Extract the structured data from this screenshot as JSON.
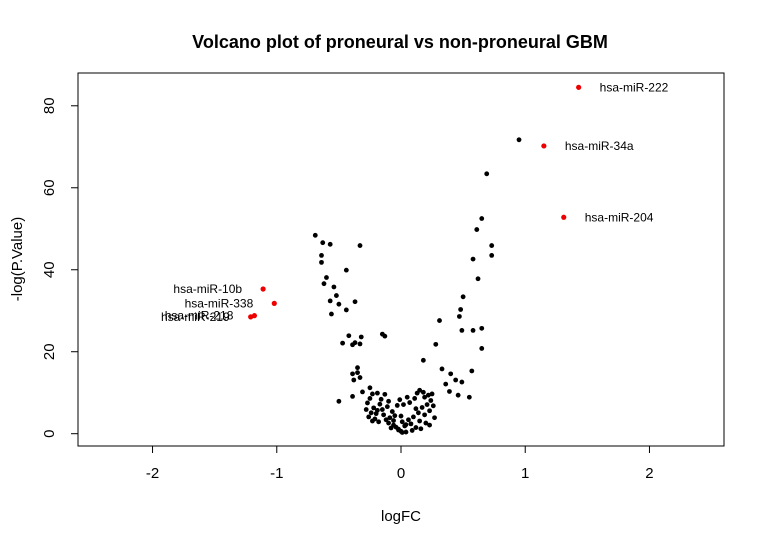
{
  "chart_data": {
    "type": "scatter",
    "title": "Volcano plot of proneural vs non-proneural GBM",
    "xlabel": "logFC",
    "ylabel": "-log(P.Value)",
    "xlim": [
      -2.6,
      2.6
    ],
    "ylim": [
      -3,
      88
    ],
    "xticks": [
      -2,
      -1,
      0,
      1,
      2
    ],
    "yticks": [
      0,
      20,
      40,
      60,
      80
    ],
    "grid": false,
    "colors": {
      "default": "#000000",
      "highlight": "#ee0000"
    },
    "highlighted": [
      {
        "x": 1.43,
        "y": 84.5,
        "label": "hsa-miR-222"
      },
      {
        "x": 1.15,
        "y": 70.2,
        "label": "hsa-miR-34a"
      },
      {
        "x": 1.31,
        "y": 52.8,
        "label": "hsa-miR-204"
      },
      {
        "x": -1.11,
        "y": 35.3,
        "label": "hsa-miR-10b"
      },
      {
        "x": -1.02,
        "y": 31.8,
        "label": "hsa-miR-338"
      },
      {
        "x": -1.21,
        "y": 28.5,
        "label": "hsa-miR-219"
      },
      {
        "x": -1.18,
        "y": 28.8,
        "label": "hsa-miR-218"
      }
    ],
    "points": [
      [
        0.95,
        71.7
      ],
      [
        0.69,
        63.4
      ],
      [
        0.65,
        52.5
      ],
      [
        0.61,
        49.8
      ],
      [
        0.73,
        45.9
      ],
      [
        0.73,
        43.5
      ],
      [
        0.58,
        42.6
      ],
      [
        0.62,
        37.8
      ],
      [
        0.5,
        33.4
      ],
      [
        0.48,
        30.3
      ],
      [
        0.47,
        28.6
      ],
      [
        0.58,
        25.2
      ],
      [
        0.65,
        25.7
      ],
      [
        0.49,
        25.2
      ],
      [
        0.28,
        21.8
      ],
      [
        0.65,
        20.8
      ],
      [
        0.18,
        17.9
      ],
      [
        0.31,
        27.6
      ],
      [
        0.33,
        15.8
      ],
      [
        0.57,
        15.3
      ],
      [
        0.4,
        14.6
      ],
      [
        0.44,
        13.1
      ],
      [
        0.49,
        12.6
      ],
      [
        0.36,
        12.1
      ],
      [
        0.55,
        8.9
      ],
      [
        0.39,
        10.3
      ],
      [
        0.46,
        9.4
      ],
      [
        -0.69,
        48.4
      ],
      [
        -0.63,
        46.6
      ],
      [
        -0.57,
        46.2
      ],
      [
        -0.33,
        45.9
      ],
      [
        -0.64,
        43.5
      ],
      [
        -0.64,
        41.8
      ],
      [
        -0.44,
        39.9
      ],
      [
        -0.6,
        38.1
      ],
      [
        -0.62,
        36.6
      ],
      [
        -0.54,
        35.8
      ],
      [
        -0.52,
        33.7
      ],
      [
        -0.37,
        32.2
      ],
      [
        -0.57,
        32.4
      ],
      [
        -0.5,
        31.6
      ],
      [
        -0.44,
        30.2
      ],
      [
        -0.56,
        29.2
      ],
      [
        -0.42,
        23.9
      ],
      [
        -0.32,
        23.6
      ],
      [
        -0.15,
        24.3
      ],
      [
        -0.13,
        23.8
      ],
      [
        -0.47,
        22.1
      ],
      [
        -0.39,
        21.7
      ],
      [
        -0.37,
        22.2
      ],
      [
        -0.33,
        21.9
      ],
      [
        -0.35,
        16.1
      ],
      [
        -0.39,
        14.6
      ],
      [
        -0.35,
        14.9
      ],
      [
        -0.33,
        13.7
      ],
      [
        -0.38,
        13.1
      ],
      [
        -0.25,
        11.2
      ],
      [
        -0.31,
        10.2
      ],
      [
        -0.23,
        9.7
      ],
      [
        -0.19,
        9.9
      ],
      [
        -0.39,
        9.1
      ],
      [
        -0.25,
        8.6
      ],
      [
        -0.5,
        7.9
      ],
      [
        -0.27,
        7.5
      ],
      [
        -0.22,
        6.3
      ],
      [
        -0.24,
        5.1
      ],
      [
        -0.19,
        5.7
      ],
      [
        -0.15,
        5.9
      ],
      [
        -0.14,
        4.6
      ],
      [
        -0.21,
        3.6
      ],
      [
        -0.12,
        3.4
      ],
      [
        -0.09,
        3.9
      ],
      [
        -0.07,
        5.4
      ],
      [
        -0.06,
        2.1
      ],
      [
        -0.04,
        1.6
      ],
      [
        -0.02,
        1.1
      ],
      [
        0.0,
        0.6
      ],
      [
        0.01,
        2.9
      ],
      [
        0.03,
        1.9
      ],
      [
        0.04,
        0.4
      ],
      [
        0.06,
        3.4
      ],
      [
        0.08,
        2.4
      ],
      [
        0.1,
        4.1
      ],
      [
        0.12,
        1.5
      ],
      [
        0.14,
        5.1
      ],
      [
        0.15,
        3.1
      ],
      [
        0.17,
        6.4
      ],
      [
        0.19,
        4.6
      ],
      [
        0.21,
        7.1
      ],
      [
        0.23,
        5.6
      ],
      [
        0.24,
        8.1
      ],
      [
        0.22,
        9.4
      ],
      [
        0.18,
        10.1
      ],
      [
        0.15,
        10.6
      ],
      [
        0.25,
        9.7
      ],
      [
        0.26,
        6.8
      ],
      [
        0.2,
        2.6
      ],
      [
        0.16,
        1.2
      ],
      [
        0.09,
        0.8
      ],
      [
        0.07,
        7.6
      ],
      [
        0.11,
        8.6
      ],
      [
        0.13,
        9.9
      ],
      [
        0.05,
        8.9
      ],
      [
        0.02,
        7.1
      ],
      [
        -0.01,
        8.3
      ],
      [
        -0.03,
        6.9
      ],
      [
        -0.05,
        4.4
      ],
      [
        -0.08,
        1.4
      ],
      [
        -0.1,
        2.6
      ],
      [
        -0.11,
        6.6
      ],
      [
        -0.13,
        9.6
      ],
      [
        -0.16,
        8.4
      ],
      [
        -0.18,
        2.9
      ],
      [
        -0.2,
        4.9
      ],
      [
        -0.23,
        3.1
      ],
      [
        -0.26,
        4.1
      ],
      [
        -0.28,
        5.9
      ],
      [
        -0.17,
        7.2
      ],
      [
        0.27,
        3.9
      ],
      [
        0.01,
        0.3
      ],
      [
        -0.02,
        0.9
      ],
      [
        0.04,
        2.2
      ],
      [
        -0.06,
        3.2
      ],
      [
        0.0,
        4.3
      ],
      [
        0.12,
        6.1
      ],
      [
        -0.1,
        7.9
      ],
      [
        0.19,
        8.9
      ],
      [
        0.23,
        2.1
      ]
    ]
  }
}
